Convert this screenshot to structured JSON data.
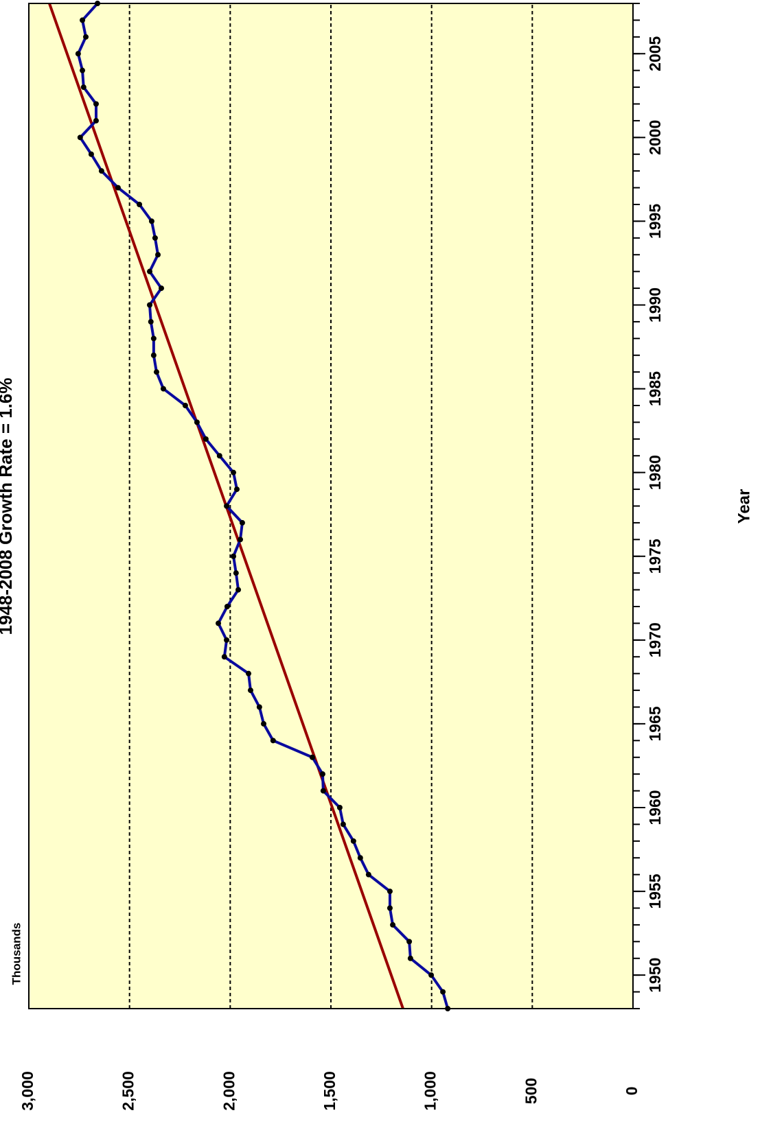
{
  "chart_data": {
    "type": "line",
    "title": "1948-2008 Growth Rate = 1.6%",
    "xlabel": "Year",
    "ylabel": "Thousands",
    "x": [
      1948,
      1949,
      1950,
      1951,
      1952,
      1953,
      1954,
      1955,
      1956,
      1957,
      1958,
      1959,
      1960,
      1961,
      1962,
      1963,
      1964,
      1965,
      1966,
      1967,
      1968,
      1969,
      1970,
      1971,
      1972,
      1973,
      1974,
      1975,
      1976,
      1977,
      1978,
      1979,
      1980,
      1981,
      1982,
      1983,
      1984,
      1985,
      1986,
      1987,
      1988,
      1989,
      1990,
      1991,
      1992,
      1993,
      1994,
      1995,
      1996,
      1997,
      1998,
      1999,
      2000,
      2001,
      2002,
      2003,
      2004,
      2005,
      2006,
      2007,
      2008
    ],
    "series": [
      {
        "color": "#0a0a9e",
        "values": [
          920,
          944,
          1002,
          1105,
          1111,
          1193,
          1207,
          1207,
          1313,
          1354,
          1388,
          1439,
          1456,
          1538,
          1541,
          1592,
          1787,
          1834,
          1855,
          1899,
          1909,
          2029,
          2018,
          2059,
          2015,
          1960,
          1971,
          1984,
          1950,
          1940,
          2018,
          1967,
          1984,
          2053,
          2121,
          2165,
          2223,
          2332,
          2366,
          2380,
          2380,
          2394,
          2400,
          2342,
          2400,
          2359,
          2373,
          2390,
          2451,
          2557,
          2639,
          2690,
          2745,
          2666,
          2666,
          2728,
          2734,
          2755,
          2717,
          2734,
          2659
        ]
      },
      {
        "color": "#990000",
        "x": [
          1948,
          2008
        ],
        "values": [
          1142,
          2898
        ]
      }
    ],
    "xlim": [
      1948,
      2008
    ],
    "xticks": [
      1950,
      1955,
      1960,
      1965,
      1970,
      1975,
      1980,
      1985,
      1990,
      1995,
      2000,
      2005
    ],
    "ylim": [
      0,
      3000
    ],
    "yticks": [
      0,
      500,
      {
        "value": 1000,
        "label": "1,000"
      },
      {
        "value": 1500,
        "label": "1,500"
      },
      {
        "value": 2000,
        "label": "2,000"
      },
      {
        "value": 2500,
        "label": "2,500"
      },
      {
        "value": 3000,
        "label": "3,000"
      }
    ],
    "grid": true,
    "background": "#ffffcc",
    "marker_color": "#000000"
  }
}
